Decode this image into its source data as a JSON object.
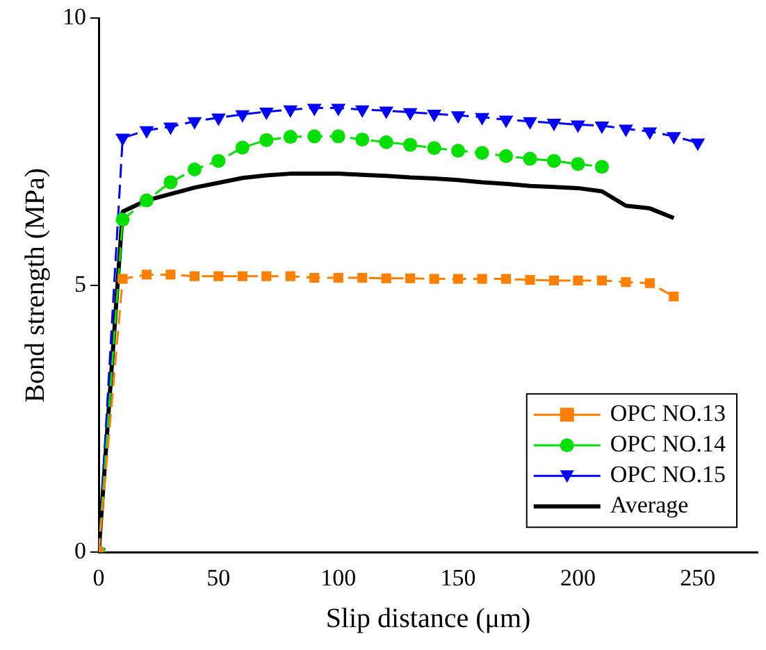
{
  "chart_data": {
    "type": "line",
    "xlabel": "Slip distance (μm)",
    "ylabel": "Bond strength (MPa)",
    "xlim": [
      0,
      275
    ],
    "xticks": [
      0,
      50,
      100,
      150,
      200,
      250
    ],
    "ylim": [
      0,
      10
    ],
    "yticks": [
      0,
      5,
      10
    ],
    "grid": false,
    "legend": "bottom right",
    "series": [
      {
        "name": "OPC NO.13",
        "color": "#ff7f00",
        "marker": "square",
        "line_style": "dashed",
        "x": [
          0,
          10,
          20,
          30,
          40,
          50,
          60,
          70,
          80,
          90,
          100,
          110,
          120,
          130,
          140,
          150,
          160,
          170,
          180,
          190,
          200,
          210,
          220,
          230,
          240
        ],
        "values": [
          0,
          5.12,
          5.2,
          5.2,
          5.17,
          5.17,
          5.17,
          5.17,
          5.17,
          5.14,
          5.14,
          5.14,
          5.13,
          5.13,
          5.12,
          5.12,
          5.12,
          5.12,
          5.1,
          5.09,
          5.09,
          5.09,
          5.06,
          5.04,
          4.79
        ]
      },
      {
        "name": "OPC NO.14",
        "color": "#00e000",
        "marker": "circle",
        "line_style": "dashed",
        "x": [
          0,
          10,
          20,
          30,
          40,
          50,
          60,
          70,
          80,
          90,
          100,
          110,
          120,
          130,
          140,
          150,
          160,
          170,
          180,
          190,
          200,
          210
        ],
        "values": [
          0,
          6.23,
          6.59,
          6.93,
          7.17,
          7.33,
          7.58,
          7.72,
          7.78,
          7.79,
          7.79,
          7.73,
          7.68,
          7.63,
          7.57,
          7.52,
          7.48,
          7.42,
          7.37,
          7.33,
          7.27,
          7.22
        ]
      },
      {
        "name": "OPC NO.15",
        "color": "#0000ff",
        "marker": "triangle",
        "line_style": "dashed",
        "x": [
          0,
          10,
          20,
          30,
          40,
          50,
          60,
          70,
          80,
          90,
          100,
          110,
          120,
          130,
          140,
          150,
          160,
          170,
          180,
          190,
          200,
          210,
          220,
          230,
          240,
          250
        ],
        "values": [
          0,
          7.76,
          7.9,
          7.97,
          8.07,
          8.14,
          8.2,
          8.25,
          8.29,
          8.32,
          8.32,
          8.29,
          8.27,
          8.24,
          8.21,
          8.18,
          8.15,
          8.1,
          8.07,
          8.04,
          8.01,
          7.99,
          7.93,
          7.88,
          7.79,
          7.67
        ]
      },
      {
        "name": "Average",
        "color": "#000000",
        "marker": "none",
        "line_style": "solid",
        "x": [
          0,
          10,
          20,
          30,
          40,
          50,
          60,
          70,
          80,
          90,
          100,
          110,
          120,
          130,
          140,
          150,
          160,
          170,
          180,
          190,
          200,
          210,
          220,
          230,
          240
        ],
        "values": [
          0,
          6.38,
          6.59,
          6.71,
          6.83,
          6.92,
          7.01,
          7.06,
          7.09,
          7.09,
          7.09,
          7.07,
          7.05,
          7.02,
          7,
          6.97,
          6.93,
          6.9,
          6.86,
          6.84,
          6.82,
          6.76,
          6.49,
          6.44,
          6.26
        ]
      }
    ]
  }
}
